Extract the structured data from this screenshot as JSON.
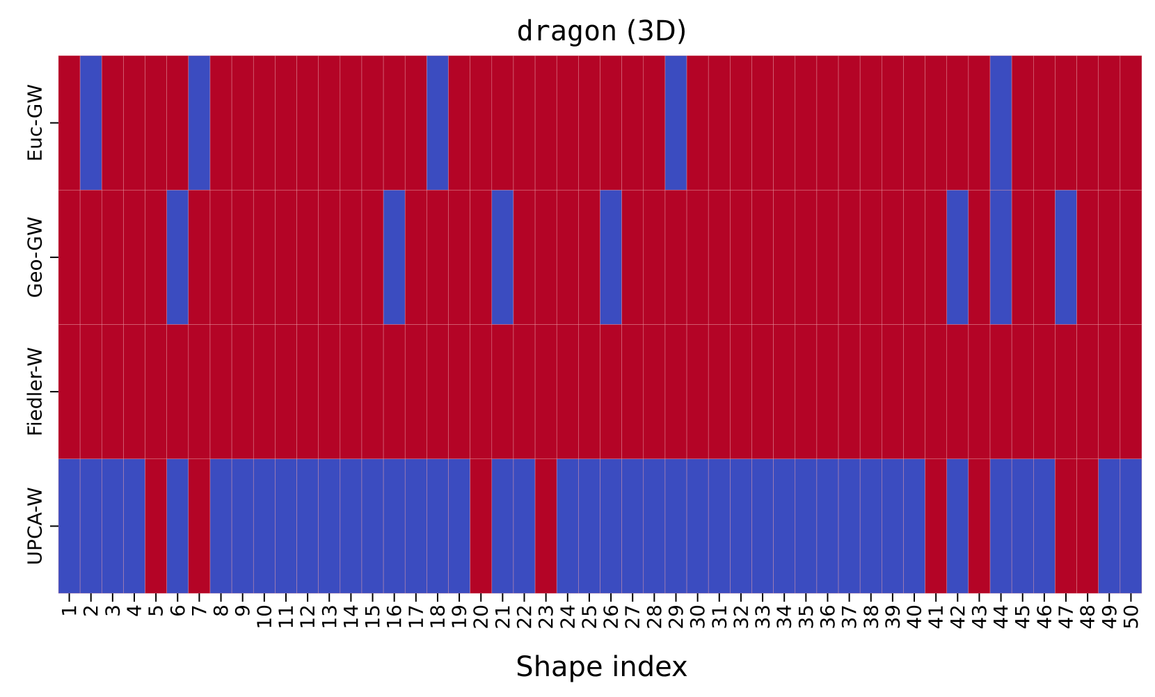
{
  "chart_data": {
    "type": "heatmap",
    "title": {
      "main": "dragon",
      "suffix": " (3D)"
    },
    "xlabel": "Shape index",
    "ylabel": "",
    "colors": {
      "correct": "#b40426",
      "incorrect": "#3b4cc0",
      "grid_line": "#e8a0a8"
    },
    "x_ticks": [
      "1",
      "2",
      "3",
      "4",
      "5",
      "6",
      "7",
      "8",
      "9",
      "10",
      "11",
      "12",
      "13",
      "14",
      "15",
      "16",
      "17",
      "18",
      "19",
      "20",
      "21",
      "22",
      "23",
      "24",
      "25",
      "26",
      "27",
      "28",
      "29",
      "30",
      "31",
      "32",
      "33",
      "34",
      "35",
      "36",
      "37",
      "38",
      "39",
      "40",
      "41",
      "42",
      "43",
      "44",
      "45",
      "46",
      "47",
      "48",
      "49",
      "50"
    ],
    "rows": [
      {
        "label": "Euc-GW",
        "values": [
          1,
          0,
          1,
          1,
          1,
          1,
          0,
          1,
          1,
          1,
          1,
          1,
          1,
          1,
          1,
          1,
          1,
          0,
          1,
          1,
          1,
          1,
          1,
          1,
          1,
          1,
          1,
          1,
          0,
          1,
          1,
          1,
          1,
          1,
          1,
          1,
          1,
          1,
          1,
          1,
          1,
          1,
          1,
          0,
          1,
          1,
          1,
          1,
          1,
          1
        ]
      },
      {
        "label": "Geo-GW",
        "values": [
          1,
          1,
          1,
          1,
          1,
          0,
          1,
          1,
          1,
          1,
          1,
          1,
          1,
          1,
          1,
          0,
          1,
          1,
          1,
          1,
          0,
          1,
          1,
          1,
          1,
          0,
          1,
          1,
          1,
          1,
          1,
          1,
          1,
          1,
          1,
          1,
          1,
          1,
          1,
          1,
          1,
          0,
          1,
          0,
          1,
          1,
          0,
          1,
          1,
          1
        ]
      },
      {
        "label": "Fiedler-W",
        "values": [
          1,
          1,
          1,
          1,
          1,
          1,
          1,
          1,
          1,
          1,
          1,
          1,
          1,
          1,
          1,
          1,
          1,
          1,
          1,
          1,
          1,
          1,
          1,
          1,
          1,
          1,
          1,
          1,
          1,
          1,
          1,
          1,
          1,
          1,
          1,
          1,
          1,
          1,
          1,
          1,
          1,
          1,
          1,
          1,
          1,
          1,
          1,
          1,
          1,
          1
        ]
      },
      {
        "label": "UPCA-W",
        "values": [
          0,
          0,
          0,
          0,
          1,
          0,
          1,
          0,
          0,
          0,
          0,
          0,
          0,
          0,
          0,
          0,
          0,
          0,
          0,
          1,
          0,
          0,
          1,
          0,
          0,
          0,
          0,
          0,
          0,
          0,
          0,
          0,
          0,
          0,
          0,
          0,
          0,
          0,
          0,
          0,
          1,
          0,
          1,
          0,
          0,
          0,
          1,
          1,
          0,
          0
        ]
      }
    ]
  }
}
